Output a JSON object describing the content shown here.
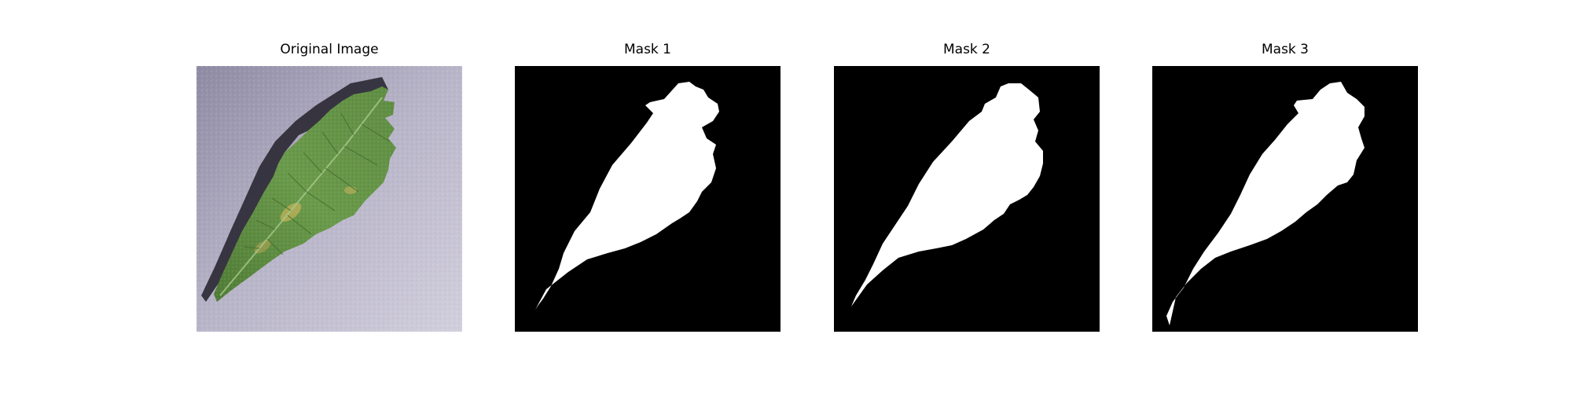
{
  "figure": {
    "panels": [
      {
        "title": "Original Image",
        "kind": "photo",
        "subject": "leaf-icon"
      },
      {
        "title": "Mask 1",
        "kind": "mask",
        "foreground_color": "#ffffff",
        "background_color": "#000000"
      },
      {
        "title": "Mask 2",
        "kind": "mask",
        "foreground_color": "#ffffff",
        "background_color": "#000000"
      },
      {
        "title": "Mask 3",
        "kind": "mask",
        "foreground_color": "#ffffff",
        "background_color": "#000000"
      }
    ],
    "colors": {
      "photo_background": "#b9b5c9",
      "leaf_green": "#5f8d43",
      "leaf_dark": "#3f6a2d",
      "shadow": "#2a2833",
      "lesion": "#c2b25a"
    }
  }
}
